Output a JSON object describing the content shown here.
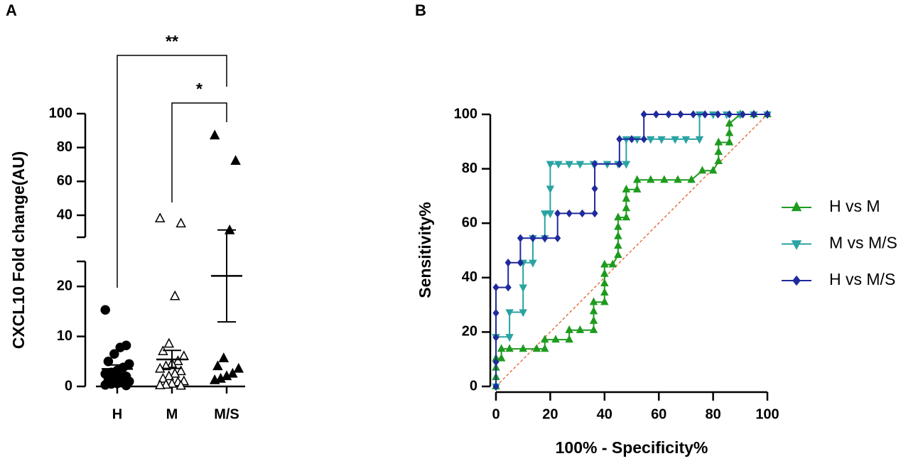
{
  "chart_data": [
    {
      "type": "dotplot",
      "panel_label": "A",
      "y_label": "CXCL10 Fold change(AU)",
      "categories": [
        "H",
        "M",
        "M/S"
      ],
      "groups": [
        {
          "marker": "circle",
          "values": [
            15.3,
            8.2,
            7.8,
            6.5,
            5.0,
            4.5,
            3.8,
            3.2,
            2.8,
            2.5,
            2.0,
            1.8,
            1.5,
            1.2,
            1.0,
            0.8,
            0.6,
            0.5,
            0.3,
            0.2
          ],
          "mean": 3.5,
          "sem": 0.8
        },
        {
          "marker": "triangle-open",
          "values": [
            38,
            35,
            18,
            8.5,
            7,
            6,
            5,
            4.5,
            4,
            3.5,
            3,
            2.5,
            2,
            1.5,
            1,
            0.8,
            0.5,
            0.3,
            0.2,
            0.1
          ],
          "mean": 5.4,
          "sem": 1.8
        },
        {
          "marker": "triangle",
          "values": [
            87,
            72,
            31,
            5.6,
            4,
            3.5,
            2.5,
            2.0,
            1.5,
            1.2
          ],
          "mean": 22.1,
          "sem": 9.2
        }
      ],
      "color": "#000000",
      "ylim": [
        0,
        100
      ],
      "ybreak": [
        25,
        27
      ],
      "yticks": [
        0,
        10,
        20,
        40,
        60,
        80,
        100
      ],
      "annotations": [
        "**",
        "*"
      ]
    },
    {
      "type": "line",
      "panel_label": "B",
      "x_label": "100% - Specificity%",
      "y_label": "Sensitivity%",
      "xlim": [
        0,
        100
      ],
      "ylim": [
        0,
        100
      ],
      "xticks": [
        0,
        20,
        40,
        60,
        80,
        100
      ],
      "yticks": [
        0,
        20,
        40,
        60,
        80,
        100
      ],
      "reference_line": true,
      "reference_color": "#e0602a",
      "legend": "right",
      "series": [
        {
          "name": "H vs M",
          "color": "#1e9b1e",
          "marker": "triangle",
          "x": [
            0,
            0,
            0,
            0,
            2,
            2,
            5,
            10,
            15,
            18,
            18,
            22,
            27,
            27,
            31,
            36,
            36,
            36,
            36,
            40,
            40,
            40,
            40,
            40,
            43,
            45,
            45,
            45,
            45,
            45,
            48,
            48,
            48,
            48,
            52,
            52,
            57,
            62,
            67,
            72,
            76,
            80,
            82,
            82,
            82,
            86,
            86,
            86,
            90,
            95,
            100
          ],
          "values": [
            0,
            3.4,
            6.9,
            10.3,
            10.3,
            13.8,
            13.8,
            13.8,
            13.8,
            13.8,
            17.2,
            17.2,
            17.2,
            20.7,
            20.7,
            20.7,
            24.1,
            27.6,
            31,
            31,
            34.5,
            37.9,
            41.4,
            44.8,
            44.8,
            48.3,
            51.7,
            55.2,
            58.6,
            62.1,
            62.1,
            65.5,
            69,
            72.4,
            72.4,
            75.9,
            75.9,
            75.9,
            75.9,
            75.9,
            79.3,
            79.3,
            82.8,
            86.2,
            89.7,
            89.7,
            93.1,
            96.6,
            100,
            100,
            100
          ]
        },
        {
          "name": "M vs M/S",
          "color": "#2aa3a3",
          "marker": "triangle-down",
          "x": [
            0,
            0,
            5,
            5,
            10,
            10,
            10,
            13.6,
            13.6,
            18,
            18,
            20,
            20,
            20,
            23,
            27,
            31,
            36,
            41,
            45,
            48,
            48,
            52,
            57,
            61,
            66,
            70,
            75,
            75,
            80,
            85,
            90,
            95,
            100
          ],
          "values": [
            0,
            18.2,
            18.2,
            27.3,
            27.3,
            36.4,
            45.5,
            45.5,
            54.5,
            54.5,
            63.6,
            63.6,
            72.7,
            81.8,
            81.8,
            81.8,
            81.8,
            81.8,
            81.8,
            81.8,
            81.8,
            90.9,
            90.9,
            90.9,
            90.9,
            90.9,
            90.9,
            90.9,
            100,
            100,
            100,
            100,
            100,
            100
          ]
        },
        {
          "name": "H vs M/S",
          "color": "#1f2a9c",
          "marker": "diamond",
          "x": [
            0,
            0,
            0,
            0,
            0,
            4.5,
            4.5,
            9,
            9,
            13.6,
            18,
            22.7,
            22.7,
            27,
            31.8,
            36.4,
            36.4,
            36.4,
            45.5,
            45.5,
            50,
            54.5,
            54.5,
            59,
            63.6,
            68,
            72.7,
            77,
            81.8,
            86,
            90.9,
            95,
            100
          ],
          "values": [
            0,
            9,
            18,
            27,
            36.4,
            36.4,
            45.5,
            45.5,
            54.5,
            54.5,
            54.5,
            54.5,
            63.6,
            63.6,
            63.6,
            63.6,
            72.7,
            81.8,
            81.8,
            90.9,
            90.9,
            90.9,
            100,
            100,
            100,
            100,
            100,
            100,
            100,
            100,
            100,
            100,
            100
          ]
        }
      ]
    }
  ]
}
